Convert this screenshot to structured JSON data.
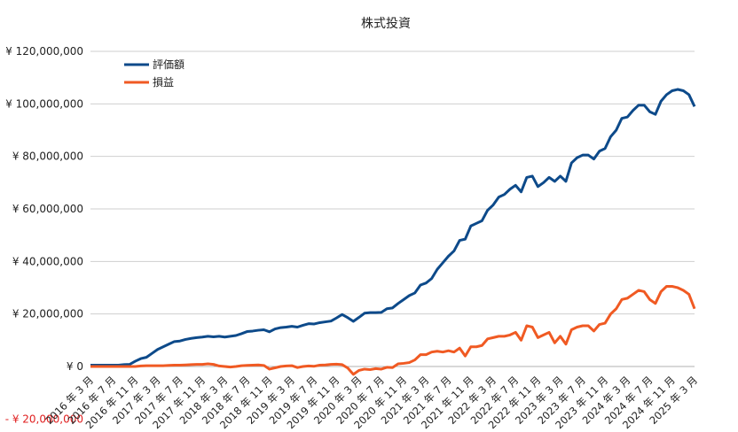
{
  "chart_data": {
    "type": "line",
    "title": "株式投資",
    "xlabel": "",
    "ylabel": "",
    "ylim": [
      -20000000,
      120000000
    ],
    "y_ticks": [
      {
        "value": 120000000,
        "label": "¥ 120,000,000"
      },
      {
        "value": 100000000,
        "label": "¥ 100,000,000"
      },
      {
        "value": 80000000,
        "label": "¥ 80,000,000"
      },
      {
        "value": 60000000,
        "label": "¥ 60,000,000"
      },
      {
        "value": 40000000,
        "label": "¥ 40,000,000"
      },
      {
        "value": 20000000,
        "label": "¥ 20,000,000"
      },
      {
        "value": 0,
        "label": "¥ 0"
      },
      {
        "value": -20000000,
        "label": "- ¥ 20,000,000"
      }
    ],
    "x_tick_labels": [
      "2016 年 3 月",
      "2016 年 7 月",
      "2016 年 11 月",
      "2017 年 3 月",
      "2017 年 7 月",
      "2017 年 11 月",
      "2018 年 3 月",
      "2018 年 7 月",
      "2018 年 11 月",
      "2019 年 3 月",
      "2019 年 7 月",
      "2019 年 11 月",
      "2020 年 3 月",
      "2020 年 7 月",
      "2020 年 11 月",
      "2021 年 3 月",
      "2021 年 7 月",
      "2021 年 11 月",
      "2022 年 3 月",
      "2022 年 7 月",
      "2022 年 11 月",
      "2023 年 3 月",
      "2023 年 7 月",
      "2023 年 11 月",
      "2024 年 3 月",
      "2024 年 7 月",
      "2024 年 11 月",
      "2025 年 3 月"
    ],
    "legend_position": "top-left",
    "grid": "horizontal",
    "series": [
      {
        "name": "評価額",
        "color": "#0d4a8a",
        "values": [
          0.5,
          0.5,
          0.5,
          0.5,
          0.5,
          0.5,
          0.7,
          0.8,
          2.0,
          3.0,
          3.5,
          5.0,
          6.5,
          7.5,
          8.5,
          9.5,
          9.7,
          10.3,
          10.7,
          11.0,
          11.2,
          11.5,
          11.3,
          11.5,
          11.2,
          11.5,
          11.8,
          12.5,
          13.3,
          13.5,
          13.8,
          14.0,
          13.2,
          14.3,
          14.8,
          15.0,
          15.3,
          15.0,
          15.7,
          16.3,
          16.2,
          16.7,
          17.0,
          17.3,
          18.5,
          19.8,
          18.6,
          17.2,
          18.7,
          20.3,
          20.5,
          20.5,
          20.6,
          22.0,
          22.3,
          24.0,
          25.5,
          27.0,
          28.0,
          31.0,
          31.8,
          33.5,
          37.0,
          39.5,
          42.0,
          44.0,
          48.0,
          48.5,
          53.5,
          54.5,
          55.5,
          59.5,
          61.5,
          64.5,
          65.5,
          67.5,
          69.0,
          66.5,
          72.0,
          72.5,
          68.5,
          70.0,
          72.0,
          70.5,
          72.5,
          70.5,
          77.5,
          79.5,
          80.5,
          80.5,
          79.0,
          82.0,
          83.0,
          87.5,
          90.0,
          94.5,
          95.0,
          97.5,
          99.5,
          99.5,
          97.0,
          96.0,
          101.0,
          103.5,
          105.0,
          105.5,
          105.0,
          103.5,
          99.0
        ]
      },
      {
        "name": "損益",
        "color": "#f05a23",
        "values": [
          0,
          0,
          0,
          0,
          0,
          0,
          0,
          0,
          0,
          0.2,
          0.3,
          0.3,
          0.3,
          0.3,
          0.4,
          0.5,
          0.5,
          0.6,
          0.7,
          0.8,
          0.8,
          1.0,
          0.8,
          0.2,
          0,
          -0.2,
          0,
          0.3,
          0.4,
          0.5,
          0.6,
          0.4,
          -1.0,
          -0.5,
          0,
          0.2,
          0.3,
          -0.4,
          0,
          0.2,
          0.1,
          0.5,
          0.6,
          0.8,
          0.9,
          0.7,
          -0.6,
          -3.0,
          -1.5,
          -1.0,
          -1.2,
          -0.8,
          -1.0,
          -0.3,
          -0.4,
          1.0,
          1.2,
          1.5,
          2.5,
          4.5,
          4.5,
          5.5,
          5.8,
          5.5,
          6.0,
          5.5,
          7.0,
          4.0,
          7.5,
          7.5,
          8.0,
          10.5,
          11.0,
          11.5,
          11.5,
          12.0,
          13.0,
          10.0,
          15.5,
          15.0,
          11.0,
          12.0,
          13.0,
          9.0,
          11.5,
          8.5,
          14.0,
          15.0,
          15.5,
          15.5,
          13.5,
          16.0,
          16.5,
          20.0,
          22.0,
          25.5,
          26.0,
          27.5,
          29.0,
          28.5,
          25.5,
          24.0,
          28.5,
          30.5,
          30.5,
          30.0,
          29.0,
          27.5,
          22.0
        ]
      }
    ]
  }
}
